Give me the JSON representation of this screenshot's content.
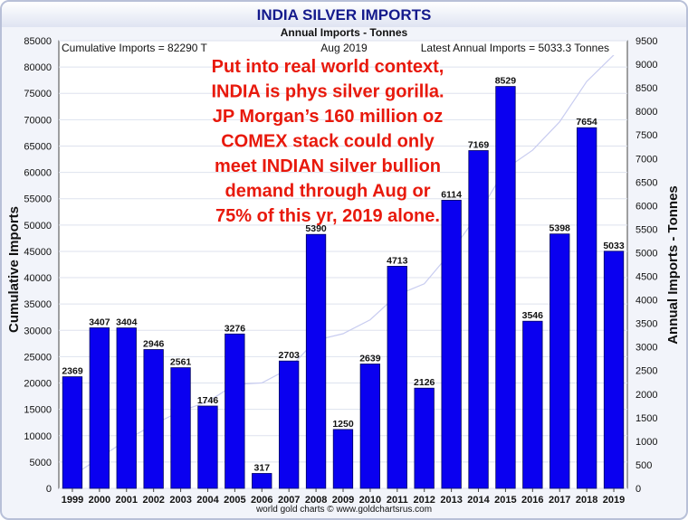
{
  "chart_data": {
    "type": "bar",
    "title": "INDIA SILVER IMPORTS",
    "subtitle": "Annual Imports - Tonnes",
    "ylabel_left": "Cumulative Imports",
    "ylabel_right": "Annual Imports - Tonnes",
    "header_left": "Cumulative Imports = 82290 T",
    "header_center": "Aug 2019",
    "header_right": "Latest Annual Imports = 5033.3 Tonnes",
    "footer": "world gold charts © www.goldchartsrus.com",
    "annotation": [
      "Put into real world context,",
      "INDIA is phys silver gorilla.",
      "JP Morgan’s 160 million oz",
      "COMEX stack could only",
      "meet INDIAN  silver bullion",
      "demand through Aug or",
      "75% of this yr, 2019 alone."
    ],
    "categories": [
      "1999",
      "2000",
      "2001",
      "2002",
      "2003",
      "2004",
      "2005",
      "2006",
      "2007",
      "2008",
      "2009",
      "2010",
      "2011",
      "2012",
      "2013",
      "2014",
      "2015",
      "2016",
      "2017",
      "2018",
      "2019"
    ],
    "series": [
      {
        "values": [
          2369,
          3407,
          3404,
          2946,
          2561,
          1746,
          3276,
          317,
          2703,
          5390,
          1250,
          2639,
          4713,
          2126,
          6114,
          7169,
          8529,
          3546,
          5398,
          7654,
          5033
        ]
      },
      {
        "values": [
          2369,
          5776,
          9180,
          12126,
          14687,
          16433,
          19709,
          20026,
          22729,
          28119,
          29369,
          32008,
          36721,
          38847,
          44961,
          52130,
          60659,
          64205,
          69603,
          77257,
          82290
        ]
      }
    ],
    "ylim_left": [
      0,
      85000
    ],
    "ylim_right": [
      0,
      9500
    ],
    "grid": true,
    "colors": {
      "bar": "#0a00f0",
      "bar_edge": "#000060",
      "cumulative_line": "#c8ccf0",
      "annotation": "#e8190c",
      "title": "#141a8c"
    }
  }
}
